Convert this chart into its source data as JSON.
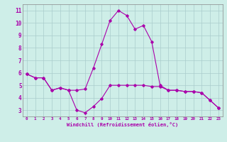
{
  "xlabel": "Windchill (Refroidissement éolien,°C)",
  "background_color": "#ceeee8",
  "grid_color": "#aacccc",
  "line_color": "#aa00aa",
  "x_hours": [
    0,
    1,
    2,
    3,
    4,
    5,
    6,
    7,
    8,
    9,
    10,
    11,
    12,
    13,
    14,
    15,
    16,
    17,
    18,
    19,
    20,
    21,
    22,
    23
  ],
  "series_upper": [
    5.9,
    5.6,
    5.6,
    4.6,
    4.8,
    4.6,
    4.6,
    4.7,
    6.4,
    8.3,
    10.2,
    11.0,
    10.6,
    9.5,
    9.8,
    8.5,
    5.0,
    4.6,
    4.6,
    4.5,
    4.5,
    4.4,
    3.8,
    3.2
  ],
  "series_lower": [
    5.9,
    5.6,
    5.6,
    4.6,
    4.8,
    4.6,
    3.0,
    2.8,
    3.3,
    3.95,
    5.0,
    5.0,
    5.0,
    5.0,
    5.0,
    4.9,
    4.9,
    4.6,
    4.6,
    4.5,
    4.5,
    4.4,
    3.8,
    3.2
  ],
  "ylim": [
    2.5,
    11.5
  ],
  "yticks": [
    3,
    4,
    5,
    6,
    7,
    8,
    9,
    10,
    11
  ],
  "xlim": [
    -0.5,
    23.5
  ]
}
